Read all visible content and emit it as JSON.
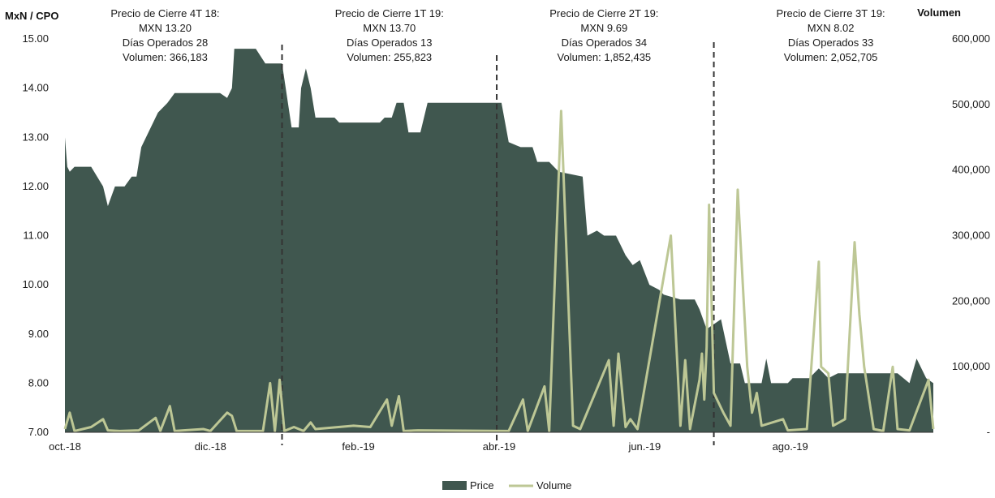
{
  "chart_data": {
    "type": "area",
    "ylabel_left": "MxN / CPO",
    "ylabel_right": "Volumen",
    "x_range": [
      "2018-10-01",
      "2019-09-30"
    ],
    "x_tick_labels": [
      {
        "label": "oct.-18",
        "date": "2018-10-01"
      },
      {
        "label": "dic.-18",
        "date": "2018-12-01"
      },
      {
        "label": "feb.-19",
        "date": "2019-02-01"
      },
      {
        "label": "abr.-19",
        "date": "2019-04-01"
      },
      {
        "label": "jun.-19",
        "date": "2019-06-01"
      },
      {
        "label": "ago.-19",
        "date": "2019-08-01"
      }
    ],
    "y_left": {
      "min": 7,
      "max": 15,
      "ticks": [
        "7.00",
        "8.00",
        "9.00",
        "10.00",
        "11.00",
        "12.00",
        "13.00",
        "14.00",
        "15.00"
      ]
    },
    "y_right": {
      "min": 0,
      "max": 600000,
      "ticks": [
        "-",
        "100,000",
        "200,000",
        "300,000",
        "400,000",
        "500,000",
        "600,000"
      ]
    },
    "series": [
      {
        "name": "Price",
        "kind": "area",
        "color": "#40574f",
        "points": [
          [
            "2018-10-01",
            13.0
          ],
          [
            "2018-10-02",
            12.4
          ],
          [
            "2018-10-03",
            12.3
          ],
          [
            "2018-10-05",
            12.4
          ],
          [
            "2018-10-12",
            12.4
          ],
          [
            "2018-10-17",
            12.0
          ],
          [
            "2018-10-19",
            11.6
          ],
          [
            "2018-10-22",
            12.0
          ],
          [
            "2018-10-26",
            12.0
          ],
          [
            "2018-10-29",
            12.2
          ],
          [
            "2018-10-31",
            12.2
          ],
          [
            "2018-11-02",
            12.8
          ],
          [
            "2018-11-06",
            13.2
          ],
          [
            "2018-11-09",
            13.5
          ],
          [
            "2018-11-13",
            13.7
          ],
          [
            "2018-11-16",
            13.9
          ],
          [
            "2018-11-21",
            13.9
          ],
          [
            "2018-11-27",
            13.9
          ],
          [
            "2018-12-05",
            13.9
          ],
          [
            "2018-12-08",
            13.8
          ],
          [
            "2018-12-10",
            14.0
          ],
          [
            "2018-12-11",
            14.8
          ],
          [
            "2018-12-20",
            14.8
          ],
          [
            "2018-12-24",
            14.5
          ],
          [
            "2018-12-31",
            14.5
          ],
          [
            "2019-01-04",
            13.2
          ],
          [
            "2019-01-07",
            13.2
          ],
          [
            "2019-01-08",
            14.0
          ],
          [
            "2019-01-10",
            14.4
          ],
          [
            "2019-01-12",
            14.0
          ],
          [
            "2019-01-14",
            13.4
          ],
          [
            "2019-01-22",
            13.4
          ],
          [
            "2019-01-24",
            13.3
          ],
          [
            "2019-01-28",
            13.3
          ],
          [
            "2019-02-10",
            13.3
          ],
          [
            "2019-02-12",
            13.4
          ],
          [
            "2019-02-15",
            13.4
          ],
          [
            "2019-02-17",
            13.7
          ],
          [
            "2019-02-20",
            13.7
          ],
          [
            "2019-02-22",
            13.1
          ],
          [
            "2019-02-27",
            13.1
          ],
          [
            "2019-03-02",
            13.7
          ],
          [
            "2019-04-02",
            13.7
          ],
          [
            "2019-04-05",
            12.9
          ],
          [
            "2019-04-10",
            12.8
          ],
          [
            "2019-04-15",
            12.8
          ],
          [
            "2019-04-17",
            12.5
          ],
          [
            "2019-04-22",
            12.5
          ],
          [
            "2019-04-26",
            12.3
          ],
          [
            "2019-05-06",
            12.2
          ],
          [
            "2019-05-08",
            11.0
          ],
          [
            "2019-05-12",
            11.1
          ],
          [
            "2019-05-15",
            11.0
          ],
          [
            "2019-05-20",
            11.0
          ],
          [
            "2019-05-24",
            10.6
          ],
          [
            "2019-05-27",
            10.4
          ],
          [
            "2019-05-30",
            10.5
          ],
          [
            "2019-06-03",
            10.0
          ],
          [
            "2019-06-07",
            9.9
          ],
          [
            "2019-06-09",
            9.8
          ],
          [
            "2019-06-16",
            9.7
          ],
          [
            "2019-06-22",
            9.7
          ],
          [
            "2019-06-24",
            9.5
          ],
          [
            "2019-06-27",
            9.1
          ],
          [
            "2019-07-03",
            9.3
          ],
          [
            "2019-07-07",
            8.4
          ],
          [
            "2019-07-11",
            8.4
          ],
          [
            "2019-07-13",
            8.0
          ],
          [
            "2019-07-20",
            8.0
          ],
          [
            "2019-07-22",
            8.5
          ],
          [
            "2019-07-24",
            8.0
          ],
          [
            "2019-07-31",
            8.0
          ],
          [
            "2019-08-02",
            8.1
          ],
          [
            "2019-08-09",
            8.1
          ],
          [
            "2019-08-13",
            8.3
          ],
          [
            "2019-08-17",
            8.1
          ],
          [
            "2019-08-21",
            8.2
          ],
          [
            "2019-09-15",
            8.2
          ],
          [
            "2019-09-20",
            8.0
          ],
          [
            "2019-09-23",
            8.5
          ],
          [
            "2019-09-27",
            8.1
          ],
          [
            "2019-09-30",
            8.0
          ]
        ]
      },
      {
        "name": "Volume",
        "kind": "line",
        "color": "#bdc795",
        "points": [
          [
            "2018-10-01",
            5000
          ],
          [
            "2018-10-03",
            30000
          ],
          [
            "2018-10-05",
            2000
          ],
          [
            "2018-10-12",
            8000
          ],
          [
            "2018-10-17",
            20000
          ],
          [
            "2018-10-19",
            3000
          ],
          [
            "2018-10-24",
            2000
          ],
          [
            "2018-11-01",
            3000
          ],
          [
            "2018-11-08",
            22000
          ],
          [
            "2018-11-10",
            2000
          ],
          [
            "2018-11-14",
            40000
          ],
          [
            "2018-11-16",
            2000
          ],
          [
            "2018-11-28",
            5000
          ],
          [
            "2018-12-01",
            2000
          ],
          [
            "2018-12-08",
            30000
          ],
          [
            "2018-12-10",
            25000
          ],
          [
            "2018-12-12",
            2000
          ],
          [
            "2018-12-23",
            2000
          ],
          [
            "2018-12-26",
            75000
          ],
          [
            "2018-12-28",
            2000
          ],
          [
            "2018-12-30",
            80000
          ],
          [
            "2019-01-01",
            2000
          ],
          [
            "2019-01-05",
            8000
          ],
          [
            "2019-01-09",
            2000
          ],
          [
            "2019-01-12",
            15000
          ],
          [
            "2019-01-14",
            5000
          ],
          [
            "2019-01-30",
            10000
          ],
          [
            "2019-02-06",
            8000
          ],
          [
            "2019-02-13",
            50000
          ],
          [
            "2019-02-15",
            10000
          ],
          [
            "2019-02-18",
            55000
          ],
          [
            "2019-02-20",
            2000
          ],
          [
            "2019-02-26",
            3000
          ],
          [
            "2019-04-05",
            2000
          ],
          [
            "2019-04-11",
            50000
          ],
          [
            "2019-04-13",
            2000
          ],
          [
            "2019-04-20",
            70000
          ],
          [
            "2019-04-22",
            2000
          ],
          [
            "2019-04-27",
            490000
          ],
          [
            "2019-05-02",
            10000
          ],
          [
            "2019-05-05",
            5000
          ],
          [
            "2019-05-17",
            110000
          ],
          [
            "2019-05-19",
            10000
          ],
          [
            "2019-05-21",
            120000
          ],
          [
            "2019-05-24",
            8000
          ],
          [
            "2019-05-26",
            20000
          ],
          [
            "2019-05-29",
            5000
          ],
          [
            "2019-06-12",
            300000
          ],
          [
            "2019-06-16",
            10000
          ],
          [
            "2019-06-18",
            110000
          ],
          [
            "2019-06-20",
            5000
          ],
          [
            "2019-06-24",
            80000
          ],
          [
            "2019-06-25",
            120000
          ],
          [
            "2019-06-26",
            50000
          ],
          [
            "2019-06-27",
            130000
          ],
          [
            "2019-06-28",
            347000
          ],
          [
            "2019-06-30",
            60000
          ],
          [
            "2019-07-04",
            30000
          ],
          [
            "2019-07-07",
            10000
          ],
          [
            "2019-07-10",
            370000
          ],
          [
            "2019-07-14",
            100000
          ],
          [
            "2019-07-16",
            30000
          ],
          [
            "2019-07-18",
            60000
          ],
          [
            "2019-07-20",
            10000
          ],
          [
            "2019-07-29",
            20000
          ],
          [
            "2019-07-31",
            3000
          ],
          [
            "2019-08-08",
            5000
          ],
          [
            "2019-08-13",
            260000
          ],
          [
            "2019-08-14",
            100000
          ],
          [
            "2019-08-17",
            90000
          ],
          [
            "2019-08-19",
            10000
          ],
          [
            "2019-08-24",
            20000
          ],
          [
            "2019-08-28",
            290000
          ],
          [
            "2019-08-30",
            180000
          ],
          [
            "2019-09-01",
            100000
          ],
          [
            "2019-09-05",
            5000
          ],
          [
            "2019-09-09",
            2000
          ],
          [
            "2019-09-13",
            100000
          ],
          [
            "2019-09-15",
            5000
          ],
          [
            "2019-09-20",
            3000
          ],
          [
            "2019-09-28",
            80000
          ],
          [
            "2019-09-30",
            5000
          ]
        ]
      }
    ],
    "quarter_dividers": [
      "2018-12-31",
      "2019-03-31",
      "2019-06-30"
    ],
    "annotations": [
      {
        "date": "2018-11-12",
        "lines": [
          "Precio de Cierre 4T 18:",
          "MXN 13.20",
          "Días Operados 28",
          "Volumen: 366,183"
        ]
      },
      {
        "date": "2019-02-14",
        "lines": [
          "Precio de Cierre 1T 19:",
          "MXN 13.70",
          "Días Operados 13",
          "Volumen: 255,823"
        ]
      },
      {
        "date": "2019-05-15",
        "lines": [
          "Precio de Cierre 2T 19:",
          "MXN 9.69",
          "Días Operados 34",
          "Volumen: 1,852,435"
        ]
      },
      {
        "date": "2019-08-18",
        "lines": [
          "Precio de Cierre 3T 19:",
          "MXN 8.02",
          "Días Operados 33",
          "Volumen: 2,052,705"
        ]
      }
    ],
    "legend": {
      "position": "bottom-center",
      "items": [
        "Price",
        "Volume"
      ]
    },
    "grid": false
  }
}
